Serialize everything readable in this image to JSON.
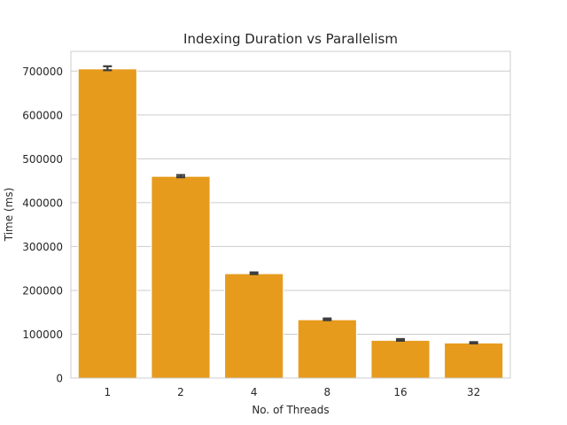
{
  "chart_data": {
    "type": "bar",
    "title": "Indexing Duration vs Parallelism",
    "xlabel": "No. of Threads",
    "ylabel": "Time (ms)",
    "categories": [
      "1",
      "2",
      "4",
      "8",
      "16",
      "32"
    ],
    "values": [
      705000,
      460000,
      238000,
      133000,
      86000,
      80000
    ],
    "error": [
      [
        702000,
        711000
      ],
      [
        458000,
        463000
      ],
      [
        237000,
        241000
      ],
      [
        132000,
        136000
      ],
      [
        85000,
        89000
      ],
      [
        79000,
        82000
      ]
    ],
    "ylim": [
      0,
      745000
    ],
    "yticks": [
      0,
      100000,
      200000,
      300000,
      400000,
      500000,
      600000,
      700000
    ],
    "grid": "horizontal",
    "bar_color": "#e69b1d",
    "error_color": "#3d3d3d"
  }
}
